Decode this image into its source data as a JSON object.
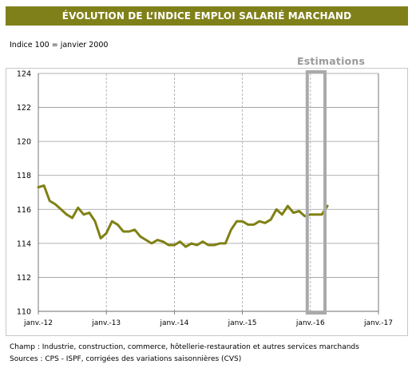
{
  "header": {
    "title": "ÉVOLUTION DE L’INDICE EMPLOI SALARIÉ MARCHAND",
    "subtitle": "Indice 100 = janvier 2000",
    "estimations_label": "Estimations"
  },
  "footer": {
    "champ": "Champ : Industrie, construction, commerce, hôtellerie-restauration et autres services marchands",
    "sources": "Sources : CPS - ISPF, corrigées des variations saisonnières (CVS)"
  },
  "colors": {
    "title_bg": "#80801a",
    "line": "#808014",
    "grid": "#999999",
    "estimation_box": "#aaaaaa"
  },
  "chart_data": {
    "type": "line",
    "title": "ÉVOLUTION DE L’INDICE EMPLOI SALARIÉ MARCHAND",
    "ylim": [
      110,
      124
    ],
    "yticks": [
      110,
      112,
      114,
      116,
      118,
      120,
      122,
      124
    ],
    "grid": true,
    "xtick_labels": [
      "janv.-12",
      "janv.-13",
      "janv.-14",
      "janv.-15",
      "janv.-16",
      "janv.-17"
    ],
    "x_range_months": 60,
    "estimation_months": [
      48,
      50
    ],
    "series": [
      {
        "name": "",
        "values": [
          117.3,
          117.4,
          116.5,
          116.3,
          116.0,
          115.7,
          115.5,
          116.1,
          115.7,
          115.8,
          115.3,
          114.3,
          114.6,
          115.3,
          115.1,
          114.7,
          114.7,
          114.8,
          114.4,
          114.2,
          114.0,
          114.2,
          114.1,
          113.9,
          113.9,
          114.1,
          113.8,
          114.0,
          113.9,
          114.1,
          113.9,
          113.9,
          114.0,
          114.0,
          114.8,
          115.3,
          115.3,
          115.1,
          115.1,
          115.3,
          115.2,
          115.4,
          116.0,
          115.7,
          116.2,
          115.8,
          115.9,
          115.6,
          115.7,
          115.7,
          115.7,
          116.2
        ]
      }
    ]
  }
}
